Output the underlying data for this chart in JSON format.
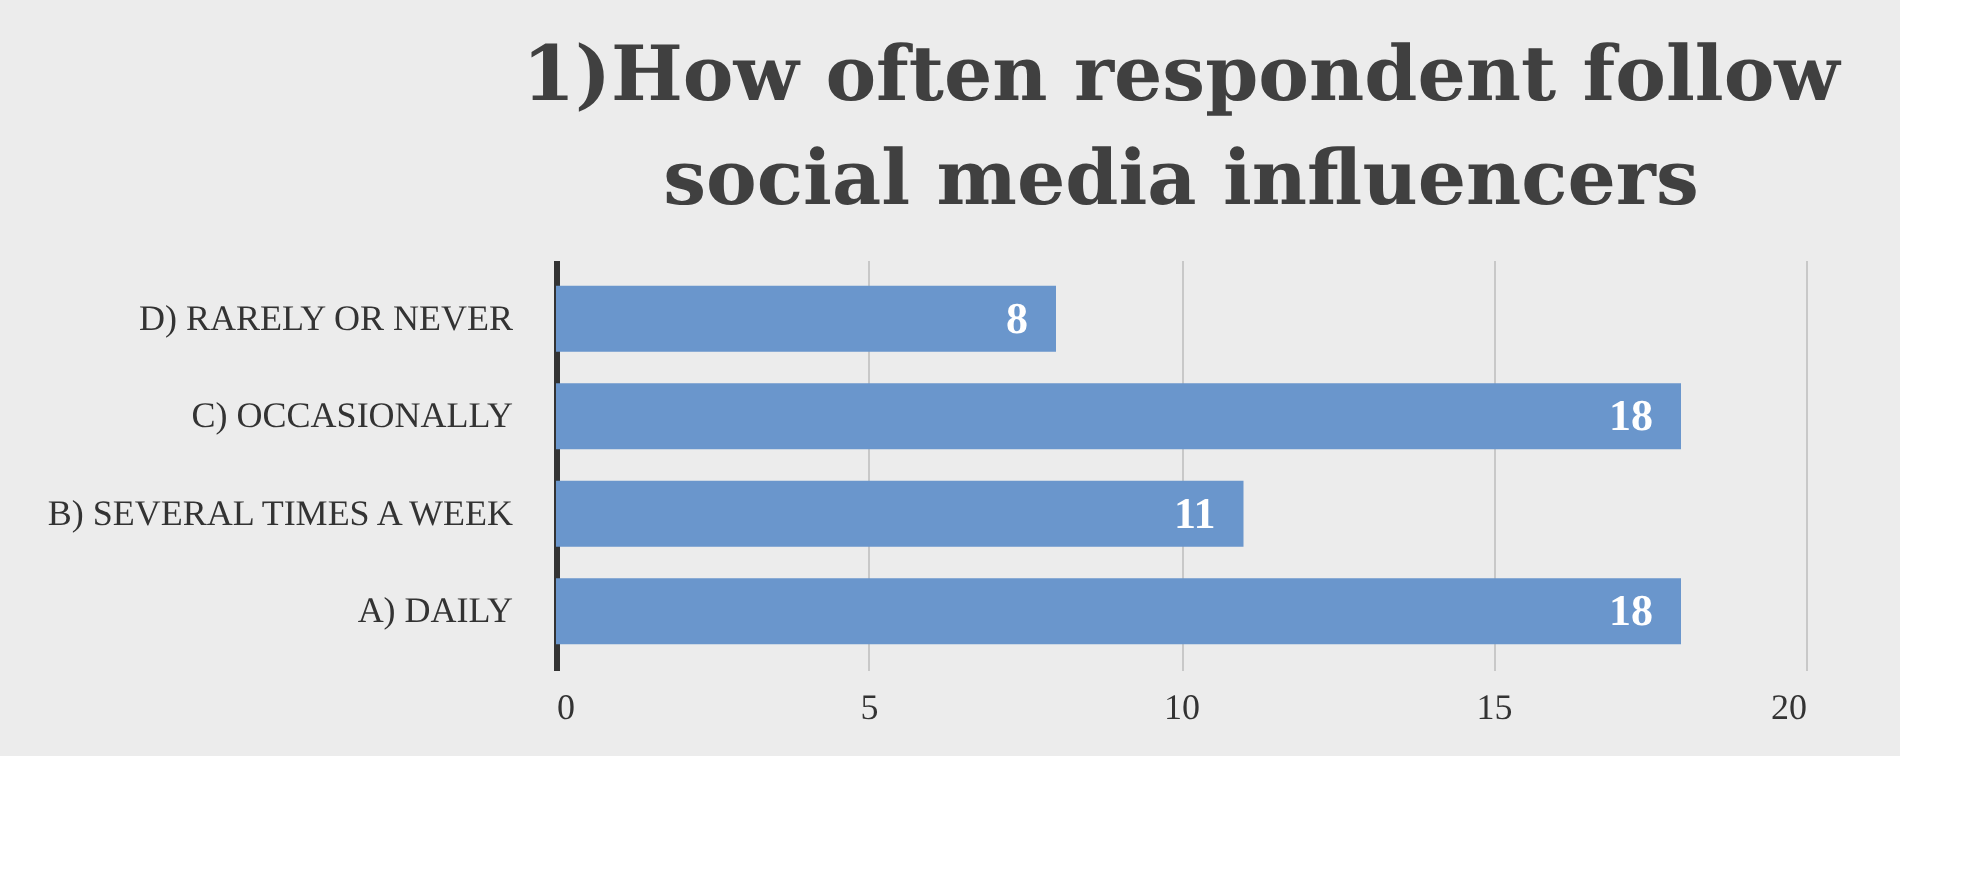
{
  "chart_data": {
    "type": "bar",
    "orientation": "horizontal",
    "title": "1)How often respondent follow social media influencers",
    "categories": [
      "D) RARELY OR NEVER",
      "C) OCCASIONALLY",
      "B) SEVERAL TIMES A WEEK",
      "A) DAILY"
    ],
    "values": [
      8,
      18,
      11,
      18
    ],
    "color": "#6a96cc",
    "xlim": [
      0,
      20
    ],
    "xticks": [
      0,
      5,
      10,
      15,
      20
    ],
    "grid": "x",
    "data_labels": true
  }
}
